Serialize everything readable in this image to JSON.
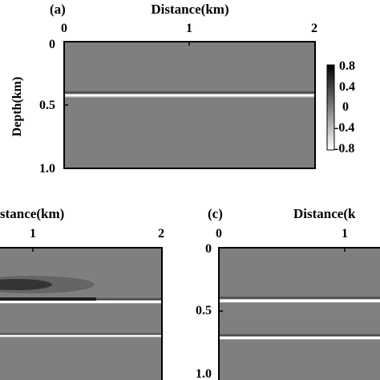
{
  "panels": {
    "a": {
      "label": "(a)",
      "xlabel": "Distance(km)",
      "ylabel": "Depth(km)",
      "xticks": [
        "0",
        "1",
        "2"
      ],
      "yticks": [
        "0",
        "0.5",
        "1.0"
      ],
      "colorbar": {
        "ticks": [
          "0.8",
          "0.4",
          "0",
          "-0.4",
          "-0.8"
        ],
        "range": [
          -0.8,
          0.8
        ]
      },
      "reflectors": [
        {
          "depth_km": 0.42,
          "amplitude": 0.8
        }
      ]
    },
    "b": {
      "xlabel_visible": "stance(km)",
      "xticks": [
        "1",
        "2"
      ],
      "reflectors": [
        {
          "depth_km": 0.42,
          "amplitude": 0.8
        },
        {
          "depth_km": 0.74,
          "amplitude": 0.6
        }
      ]
    },
    "c": {
      "label": "(c)",
      "xlabel_visible": "Distance(k",
      "xticks": [
        "0",
        "1"
      ],
      "yticks": [
        "0",
        "0.5",
        "1.0"
      ],
      "reflectors": [
        {
          "depth_km": 0.42,
          "amplitude": 0.8
        },
        {
          "depth_km": 0.74,
          "amplitude": 0.7
        }
      ]
    }
  }
}
